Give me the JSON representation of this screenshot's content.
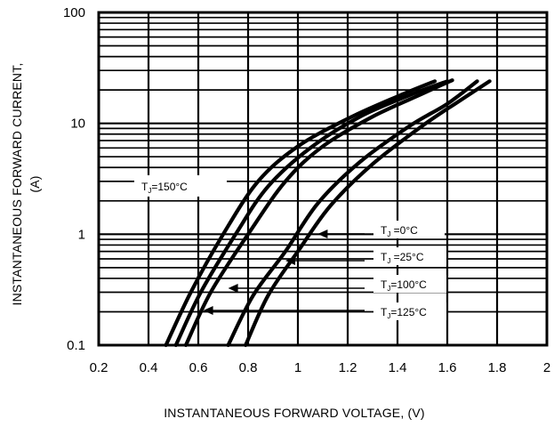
{
  "chart_data": {
    "type": "line",
    "title": "",
    "xlabel": "INSTANTANEOUS FORWARD VOLTAGE, (V)",
    "ylabel_line1": "INSTANTANEOUS FORWARD CURRENT,",
    "ylabel_line2": "(A)",
    "xlim": [
      0.2,
      2.0
    ],
    "ylim": [
      0.1,
      100
    ],
    "yscale": "log",
    "grid": true,
    "x_ticks": [
      "0.2",
      "0.4",
      "0.6",
      "0.8",
      "1",
      "1.2",
      "1.4",
      "1.6",
      "1.8",
      "2"
    ],
    "y_ticks": [
      "0.1",
      "1",
      "10",
      "100"
    ],
    "series": [
      {
        "label_prefix": "T",
        "label_sub": "J",
        "label_suffix": "=150°C",
        "points": [
          [
            0.47,
            0.1
          ],
          [
            0.57,
            0.3
          ],
          [
            0.7,
            1.0
          ],
          [
            0.84,
            3.0
          ],
          [
            1.0,
            6.2
          ],
          [
            1.2,
            11.0
          ],
          [
            1.4,
            17.5
          ],
          [
            1.55,
            24.0
          ]
        ]
      },
      {
        "label_prefix": "T",
        "label_sub": "J",
        "label_suffix": "=125°C",
        "points": [
          [
            0.51,
            0.1
          ],
          [
            0.61,
            0.3
          ],
          [
            0.75,
            1.0
          ],
          [
            0.88,
            2.7
          ],
          [
            1.05,
            6.0
          ],
          [
            1.25,
            11.5
          ],
          [
            1.45,
            18.0
          ],
          [
            1.6,
            24.0
          ]
        ]
      },
      {
        "label_prefix": "T",
        "label_sub": "J",
        "label_suffix": "=100°C",
        "points": [
          [
            0.55,
            0.1
          ],
          [
            0.65,
            0.3
          ],
          [
            0.8,
            1.0
          ],
          [
            0.95,
            3.0
          ],
          [
            1.1,
            6.2
          ],
          [
            1.3,
            11.5
          ],
          [
            1.5,
            18.5
          ],
          [
            1.62,
            24.5
          ]
        ]
      },
      {
        "label_prefix": "T",
        "label_sub": "J",
        "label_suffix": " =0°C",
        "points": [
          [
            0.72,
            0.1
          ],
          [
            0.82,
            0.28
          ],
          [
            0.95,
            0.7
          ],
          [
            1.08,
            1.9
          ],
          [
            1.25,
            4.5
          ],
          [
            1.45,
            9.5
          ],
          [
            1.6,
            15.0
          ],
          [
            1.72,
            24.0
          ]
        ]
      },
      {
        "label_prefix": "T",
        "label_sub": "J",
        "label_suffix": " =25°C",
        "points": [
          [
            0.79,
            0.1
          ],
          [
            0.88,
            0.28
          ],
          [
            1.0,
            0.7
          ],
          [
            1.13,
            1.8
          ],
          [
            1.3,
            4.3
          ],
          [
            1.5,
            9.5
          ],
          [
            1.65,
            16.0
          ],
          [
            1.77,
            24.0
          ]
        ]
      }
    ],
    "annotations": [
      {
        "series_index": 0,
        "pointer": "none",
        "pointer_at": null
      },
      {
        "series_index": 3,
        "pointer": "arrow",
        "pointer_at": [
          1.08,
          1.0
        ]
      },
      {
        "series_index": 4,
        "pointer": "arrow",
        "pointer_at": [
          0.95,
          0.56
        ]
      },
      {
        "series_index": 2,
        "pointer": "arrow",
        "pointer_at": [
          0.72,
          0.41
        ]
      },
      {
        "series_index": 1,
        "pointer": "arrow",
        "pointer_at": [
          0.62,
          0.235
        ]
      }
    ]
  }
}
